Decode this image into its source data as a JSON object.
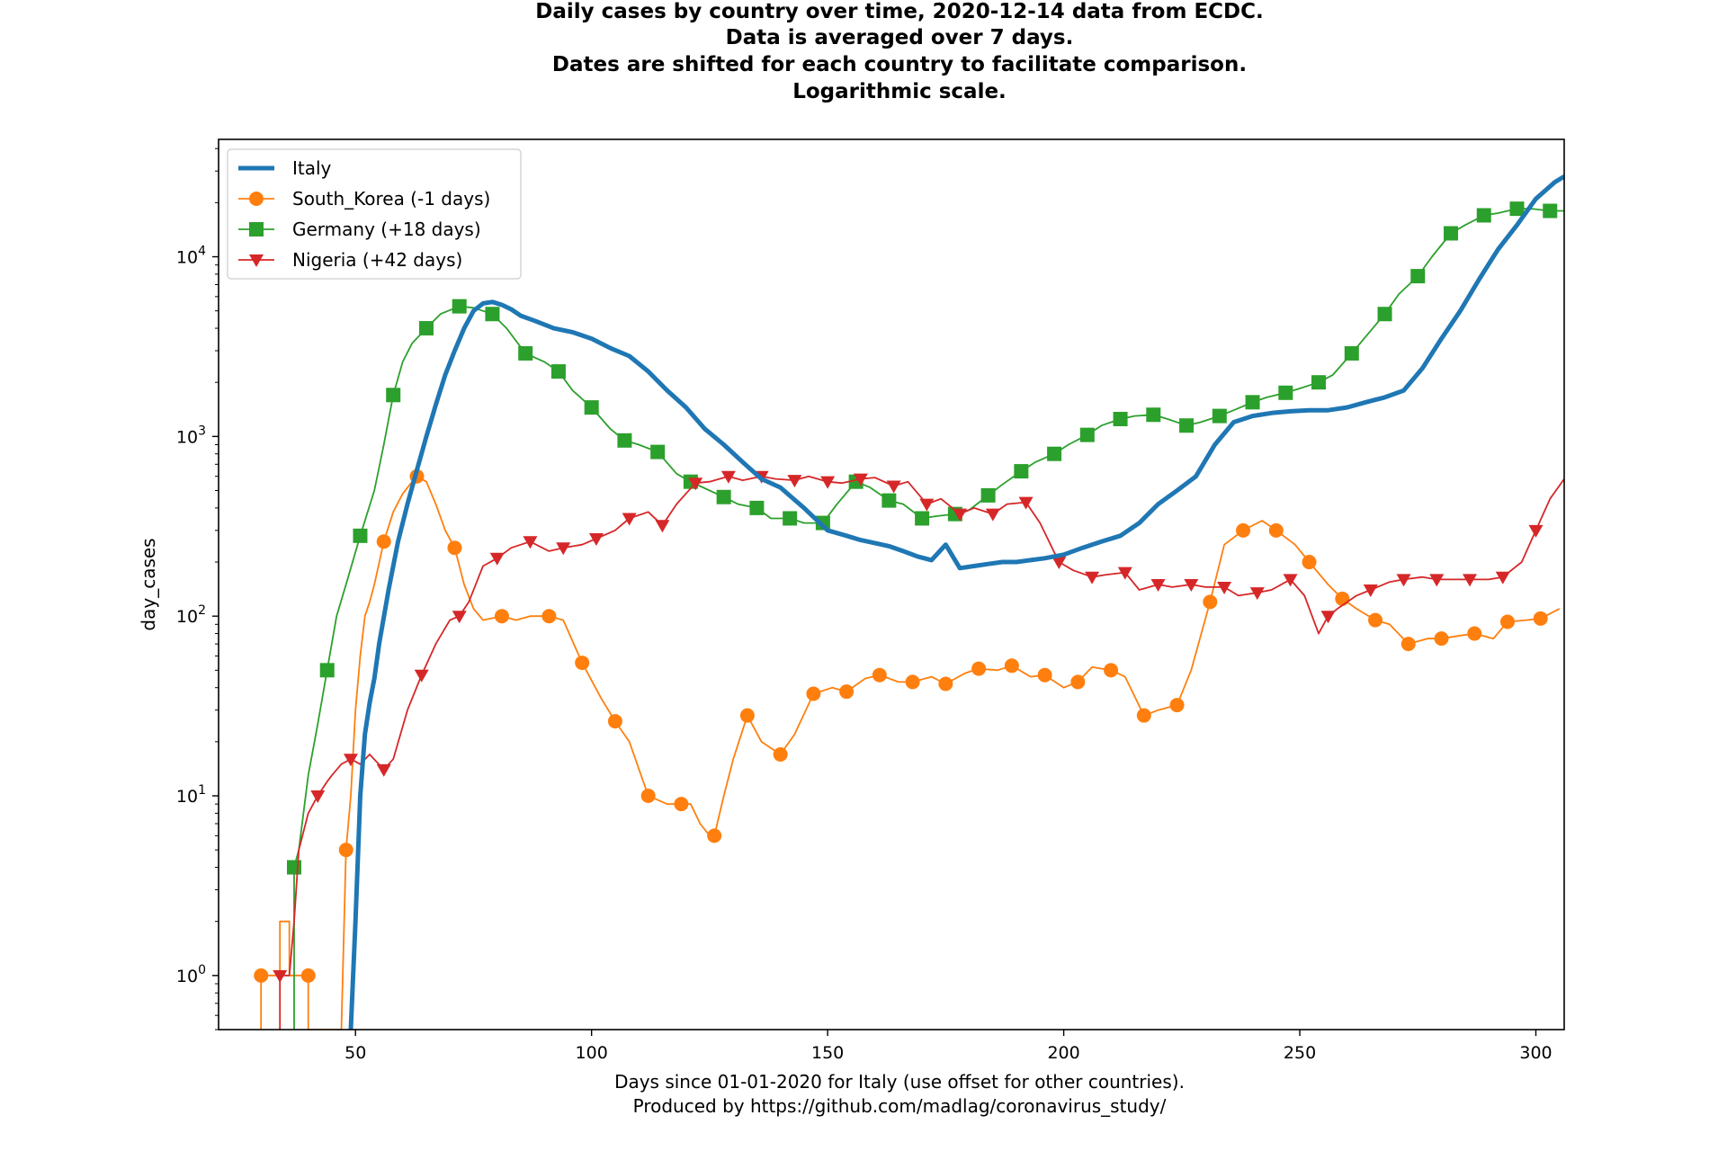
{
  "chart_data": {
    "type": "line",
    "title_lines": [
      "Daily cases by country over time, 2020-12-14 data from ECDC.",
      "Data is averaged over 7 days.",
      "Dates are shifted for each country to facilitate comparison.",
      "Logarithmic scale."
    ],
    "xlabel_lines": [
      "Days since 01-01-2020 for Italy (use offset for other countries).",
      "Produced by https://github.com/madlag/coronavirus_study/"
    ],
    "ylabel": "day_cases",
    "y_scale": "log",
    "xlim": [
      21,
      306
    ],
    "ylim": [
      0.5,
      45000
    ],
    "x_ticks": [
      50,
      100,
      150,
      200,
      250,
      300
    ],
    "y_ticks": [
      {
        "value": 1,
        "base": "10",
        "exp": "0"
      },
      {
        "value": 10,
        "base": "10",
        "exp": "1"
      },
      {
        "value": 100,
        "base": "10",
        "exp": "2"
      },
      {
        "value": 1000,
        "base": "10",
        "exp": "3"
      },
      {
        "value": 10000,
        "base": "10",
        "exp": "4"
      }
    ],
    "legend_position": "upper-left",
    "grid": false,
    "series": [
      {
        "name": "Italy",
        "color": "#1f77b4",
        "marker": "none",
        "line_width": 5,
        "x": [
          49,
          50,
          51,
          52,
          53,
          54,
          55,
          57,
          59,
          61,
          63,
          65,
          67,
          69,
          71,
          73,
          75,
          77,
          79,
          81,
          83,
          85,
          88,
          92,
          96,
          100,
          104,
          108,
          112,
          116,
          120,
          124,
          128,
          132,
          136,
          140,
          145,
          150,
          154,
          157,
          160,
          163,
          166,
          169,
          172,
          175,
          178,
          181,
          184,
          187,
          190,
          193,
          196,
          200,
          204,
          208,
          212,
          216,
          220,
          224,
          228,
          232,
          236,
          240,
          244,
          248,
          252,
          256,
          260,
          264,
          268,
          272,
          276,
          280,
          284,
          288,
          292,
          296,
          300,
          304,
          306
        ],
        "y": [
          0.5,
          2,
          10,
          22,
          33,
          45,
          70,
          140,
          260,
          420,
          650,
          1000,
          1500,
          2200,
          3000,
          4000,
          5000,
          5500,
          5600,
          5400,
          5100,
          4700,
          4400,
          4000,
          3800,
          3500,
          3100,
          2800,
          2300,
          1800,
          1450,
          1100,
          900,
          720,
          580,
          520,
          400,
          300,
          280,
          265,
          255,
          245,
          230,
          215,
          205,
          250,
          185,
          190,
          195,
          200,
          200,
          205,
          210,
          220,
          240,
          260,
          280,
          330,
          420,
          500,
          600,
          900,
          1200,
          1300,
          1350,
          1380,
          1400,
          1400,
          1450,
          1550,
          1650,
          1800,
          2400,
          3500,
          5000,
          7500,
          11000,
          15000,
          21000,
          26000,
          28000
        ]
      },
      {
        "name": "South_Korea (-1 days)",
        "color": "#ff7f0e",
        "marker": "circle",
        "line_width": 1.8,
        "x": [
          30,
          30,
          34,
          34,
          35,
          36,
          36,
          40,
          40,
          47,
          48,
          49,
          50,
          51,
          52,
          53,
          54,
          56,
          58,
          60,
          62,
          63,
          65,
          67,
          69,
          71,
          73,
          75,
          77,
          81,
          84,
          87,
          91,
          94,
          98,
          102,
          105,
          108,
          112,
          116,
          119,
          121,
          123,
          125,
          126,
          128,
          130,
          133,
          136,
          140,
          143,
          147,
          151,
          154,
          158,
          161,
          165,
          168,
          172,
          175,
          179,
          182,
          186,
          189,
          193,
          196,
          200,
          203,
          206,
          210,
          213,
          217,
          220,
          224,
          227,
          231,
          234,
          238,
          242,
          245,
          249,
          252,
          256,
          259,
          262,
          266,
          269,
          273,
          277,
          280,
          284,
          287,
          291,
          294,
          298,
          301,
          305
        ],
        "y": [
          0.5,
          1,
          1,
          2,
          2,
          2,
          1,
          1,
          0.5,
          0.5,
          5,
          10,
          30,
          60,
          100,
          120,
          150,
          260,
          380,
          480,
          560,
          600,
          560,
          420,
          300,
          240,
          150,
          110,
          95,
          100,
          95,
          100,
          100,
          95,
          55,
          35,
          26,
          20,
          10,
          9,
          9,
          9,
          7,
          6,
          6,
          10,
          16,
          28,
          20,
          17,
          22,
          37,
          40,
          38,
          45,
          47,
          43,
          43,
          46,
          42,
          48,
          51,
          50,
          53,
          46,
          47,
          40,
          43,
          52,
          50,
          46,
          28,
          30,
          32,
          50,
          120,
          250,
          300,
          340,
          300,
          250,
          200,
          150,
          125,
          110,
          95,
          90,
          70,
          75,
          75,
          78,
          80,
          75,
          93,
          95,
          97,
          110
        ]
      },
      {
        "name": "Germany (+18 days)",
        "color": "#2ca02c",
        "marker": "square",
        "line_width": 1.8,
        "x": [
          37,
          37,
          38,
          40,
          42,
          44,
          46,
          48,
          51,
          54,
          56,
          58,
          60,
          62,
          65,
          68,
          72,
          75,
          79,
          82,
          86,
          90,
          93,
          96,
          100,
          104,
          107,
          110,
          114,
          118,
          121,
          125,
          128,
          131,
          135,
          138,
          142,
          145,
          149,
          152,
          156,
          159,
          163,
          166,
          170,
          173,
          177,
          180,
          184,
          187,
          191,
          194,
          198,
          201,
          205,
          208,
          212,
          215,
          219,
          222,
          226,
          229,
          233,
          236,
          240,
          243,
          247,
          250,
          254,
          257,
          261,
          264,
          268,
          271,
          275,
          278,
          282,
          285,
          289,
          292,
          296,
          299,
          303,
          306
        ],
        "y": [
          0.5,
          4,
          5,
          13,
          25,
          50,
          100,
          150,
          280,
          500,
          900,
          1700,
          2600,
          3300,
          4000,
          4800,
          5300,
          5200,
          4800,
          4000,
          2900,
          2600,
          2300,
          1800,
          1450,
          1100,
          950,
          900,
          820,
          620,
          560,
          500,
          460,
          420,
          400,
          350,
          350,
          330,
          330,
          420,
          560,
          520,
          440,
          420,
          350,
          360,
          370,
          390,
          470,
          540,
          640,
          720,
          800,
          900,
          1020,
          1150,
          1250,
          1300,
          1320,
          1250,
          1150,
          1200,
          1300,
          1400,
          1550,
          1650,
          1750,
          1850,
          2000,
          2200,
          2900,
          3600,
          4800,
          6200,
          7800,
          10000,
          13500,
          15000,
          17000,
          17500,
          18500,
          18500,
          18000,
          18000
        ]
      },
      {
        "name": "Nigeria (+42 days)",
        "color": "#d62728",
        "marker": "triangle-down",
        "line_width": 1.8,
        "x": [
          34,
          34,
          36,
          37,
          38,
          40,
          42,
          44,
          45,
          47,
          49,
          51,
          53,
          56,
          58,
          61,
          64,
          67,
          70,
          72,
          74,
          77,
          80,
          83,
          87,
          91,
          94,
          98,
          101,
          105,
          108,
          112,
          115,
          118,
          122,
          125,
          129,
          132,
          136,
          139,
          143,
          146,
          150,
          153,
          157,
          160,
          164,
          167,
          171,
          174,
          178,
          181,
          185,
          188,
          192,
          195,
          199,
          202,
          206,
          209,
          213,
          216,
          220,
          223,
          227,
          230,
          234,
          237,
          241,
          244,
          248,
          251,
          254,
          256,
          258,
          262,
          265,
          269,
          272,
          276,
          279,
          283,
          286,
          290,
          293,
          297,
          300,
          303,
          306
        ],
        "y": [
          0.5,
          1,
          1,
          2,
          5,
          8,
          10,
          12,
          13,
          15,
          16,
          15,
          17,
          14,
          16,
          30,
          47,
          70,
          95,
          100,
          120,
          190,
          210,
          240,
          260,
          230,
          240,
          250,
          270,
          300,
          350,
          380,
          320,
          420,
          550,
          560,
          600,
          570,
          600,
          580,
          570,
          600,
          560,
          550,
          580,
          590,
          530,
          560,
          420,
          450,
          370,
          400,
          370,
          420,
          430,
          330,
          200,
          180,
          165,
          170,
          175,
          140,
          150,
          145,
          150,
          145,
          145,
          130,
          135,
          140,
          160,
          130,
          80,
          100,
          110,
          130,
          140,
          155,
          160,
          165,
          160,
          160,
          160,
          160,
          165,
          200,
          300,
          450,
          580
        ]
      }
    ]
  }
}
